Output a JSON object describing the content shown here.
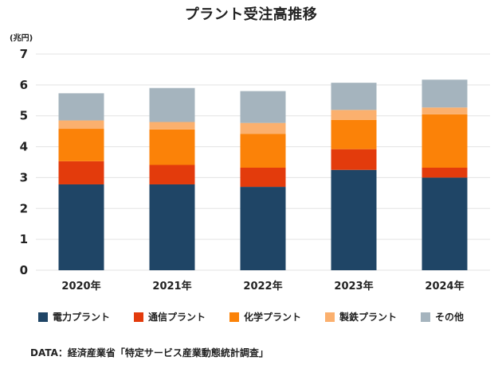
{
  "chart_data": {
    "type": "bar",
    "stacked": true,
    "title": "プラント受注高推移",
    "unit_label": "(兆円)",
    "categories": [
      "2020年",
      "2021年",
      "2022年",
      "2023年",
      "2024年"
    ],
    "ylim": [
      0,
      7
    ],
    "yticks": [
      "0",
      "1",
      "2",
      "3",
      "4",
      "5",
      "6",
      "7"
    ],
    "grid": true,
    "legend_position": "bottom",
    "series": [
      {
        "name": "電力プラント",
        "color": "#1f4566",
        "values": [
          2.78,
          2.78,
          2.7,
          3.25,
          3.0
        ]
      },
      {
        "name": "通信プラント",
        "color": "#e33b0c",
        "values": [
          0.75,
          0.63,
          0.62,
          0.67,
          0.32
        ]
      },
      {
        "name": "化学プラント",
        "color": "#fb8208",
        "values": [
          1.05,
          1.15,
          1.1,
          0.95,
          1.73
        ]
      },
      {
        "name": "製鉄プラント",
        "color": "#fbb06e",
        "values": [
          0.27,
          0.24,
          0.35,
          0.32,
          0.22
        ]
      },
      {
        "name": "その他",
        "color": "#a5b4be",
        "values": [
          0.88,
          1.1,
          1.03,
          0.88,
          0.9
        ]
      }
    ],
    "source": "DATA：経済産業省「特定サービス産業動態統計調査」"
  }
}
